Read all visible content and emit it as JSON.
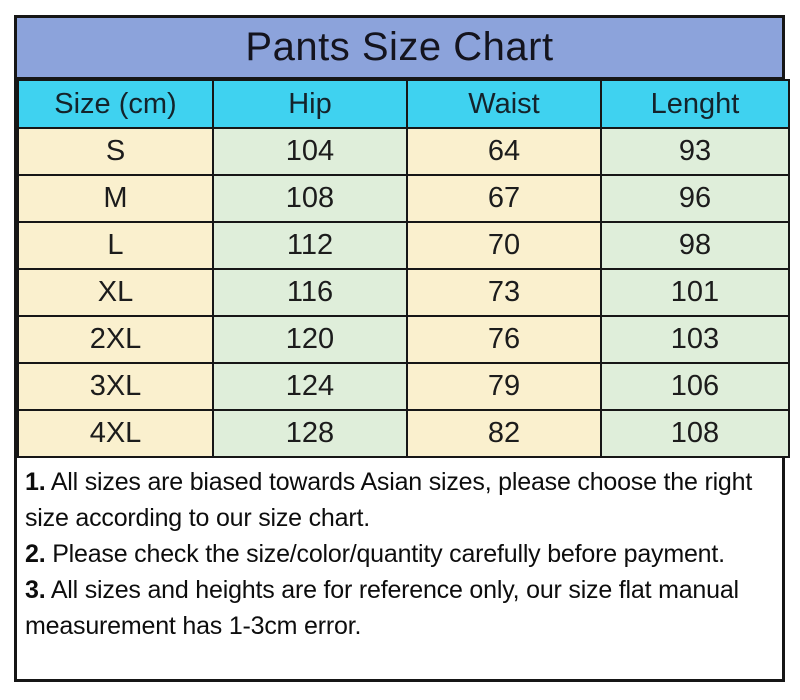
{
  "chart_data": {
    "type": "table",
    "title": "Pants Size Chart",
    "columns": [
      "Size (cm)",
      "Hip",
      "Waist",
      "Lenght"
    ],
    "rows": [
      [
        "S",
        "104",
        "64",
        "93"
      ],
      [
        "M",
        "108",
        "67",
        "96"
      ],
      [
        "L",
        "112",
        "70",
        "98"
      ],
      [
        "XL",
        "116",
        "73",
        "101"
      ],
      [
        "2XL",
        "120",
        "76",
        "103"
      ],
      [
        "3XL",
        "124",
        "79",
        "106"
      ],
      [
        "4XL",
        "128",
        "82",
        "108"
      ]
    ],
    "layout": {
      "grid": "on",
      "column_pattern": [
        "cream",
        "green",
        "cream",
        "green"
      ]
    }
  },
  "notes": [
    {
      "num": "1.",
      "text": " All sizes are biased towards Asian sizes, please choose the right size according to our size chart."
    },
    {
      "num": "2.",
      "text": " Please check the size/color/quantity carefully before payment."
    },
    {
      "num": "3.",
      "text": " All sizes and heights are for reference only, our size flat manual measurement has 1-3cm error."
    }
  ],
  "colors": {
    "title_bg": "#8CA3DB",
    "header_bg": "#3FD2F0",
    "column_cream": "#FAF0CE",
    "column_green": "#DFEEDA",
    "border": "#161616",
    "text": "#1c1c1c"
  }
}
